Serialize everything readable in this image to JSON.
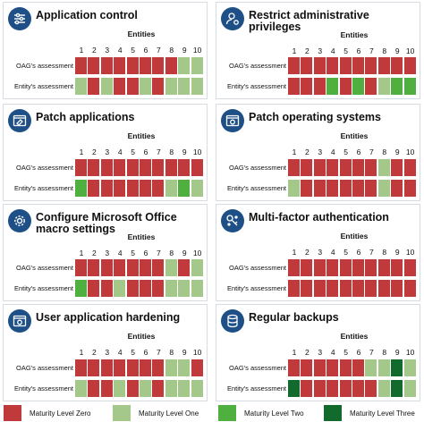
{
  "axis_title": "Entities",
  "row_labels": [
    "OAG's assessment",
    "Entity's assessment"
  ],
  "legend": [
    {
      "label": "Maturity Level Zero",
      "color": "#c0393b"
    },
    {
      "label": "Maturity Level One",
      "color": "#a4c889"
    },
    {
      "label": "Maturity Level Two",
      "color": "#4faf3f"
    },
    {
      "label": "Maturity Level Three",
      "color": "#126b2c"
    }
  ],
  "icons": [
    "sliders-icon",
    "user-gear-icon",
    "window-patch-icon",
    "window-gear-icon",
    "gear-icon",
    "key-dots-icon",
    "window-gear-icon",
    "database-icon"
  ],
  "chart_data": {
    "type": "heatmap",
    "x": [
      1,
      2,
      3,
      4,
      5,
      6,
      7,
      8,
      9,
      10
    ],
    "xlabel": "Entities",
    "rows": [
      "OAG's assessment",
      "Entity's assessment"
    ],
    "value_meaning": "maturity level (0-3)",
    "panels": [
      {
        "title": "Application control",
        "oag": [
          0,
          0,
          0,
          0,
          0,
          0,
          0,
          0,
          1,
          1
        ],
        "entity": [
          1,
          0,
          1,
          0,
          0,
          1,
          0,
          1,
          1,
          1
        ]
      },
      {
        "title": "Restrict administrative privileges",
        "oag": [
          0,
          0,
          0,
          0,
          0,
          0,
          0,
          0,
          0,
          0
        ],
        "entity": [
          0,
          0,
          0,
          2,
          0,
          2,
          0,
          1,
          2,
          2
        ]
      },
      {
        "title": "Patch applications",
        "oag": [
          0,
          0,
          0,
          0,
          0,
          0,
          0,
          0,
          0,
          0
        ],
        "entity": [
          2,
          0,
          0,
          0,
          0,
          0,
          0,
          1,
          2,
          1
        ]
      },
      {
        "title": "Patch operating systems",
        "oag": [
          0,
          0,
          0,
          0,
          0,
          0,
          0,
          1,
          0,
          0
        ],
        "entity": [
          1,
          0,
          0,
          0,
          0,
          0,
          0,
          1,
          0,
          0
        ]
      },
      {
        "title": "Configure Microsoft Office macro settings",
        "oag": [
          0,
          0,
          0,
          0,
          0,
          0,
          0,
          1,
          0,
          1
        ],
        "entity": [
          2,
          0,
          0,
          1,
          0,
          0,
          0,
          1,
          1,
          1
        ]
      },
      {
        "title": "Multi-factor authentication",
        "oag": [
          0,
          0,
          0,
          0,
          0,
          0,
          0,
          0,
          0,
          0
        ],
        "entity": [
          0,
          0,
          0,
          0,
          0,
          0,
          0,
          0,
          0,
          0
        ]
      },
      {
        "title": "User application hardening",
        "oag": [
          0,
          0,
          0,
          0,
          0,
          0,
          0,
          1,
          1,
          0
        ],
        "entity": [
          1,
          0,
          0,
          1,
          0,
          1,
          0,
          1,
          1,
          1
        ]
      },
      {
        "title": "Regular backups",
        "oag": [
          0,
          0,
          0,
          0,
          0,
          0,
          1,
          1,
          3,
          1
        ],
        "entity": [
          3,
          0,
          0,
          0,
          0,
          0,
          0,
          1,
          3,
          1
        ]
      }
    ]
  }
}
